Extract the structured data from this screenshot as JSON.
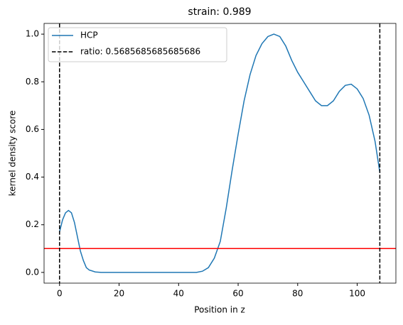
{
  "chart_data": {
    "type": "line",
    "title": "strain: 0.989",
    "xlabel": "Position in z",
    "ylabel": "kernel density score",
    "xlim": [
      -5.2,
      113
    ],
    "ylim": [
      -0.045,
      1.045
    ],
    "xticks": [
      0,
      20,
      40,
      60,
      80,
      100
    ],
    "yticks": [
      {
        "value": 0,
        "label": "0.0"
      },
      0.2,
      0.4,
      0.6,
      0.8,
      {
        "value": 1,
        "label": "1.0"
      }
    ],
    "series": [
      {
        "name": "HCP",
        "color": "#1f77b4",
        "x": [
          0,
          1,
          2,
          3,
          4,
          5,
          6,
          7,
          8,
          9,
          10,
          12,
          14,
          20,
          30,
          40,
          46,
          48,
          50,
          52,
          54,
          56,
          58,
          60,
          62,
          64,
          66,
          68,
          70,
          72,
          74,
          76,
          78,
          80,
          82,
          84,
          86,
          88,
          90,
          92,
          94,
          96,
          98,
          100,
          102,
          104,
          106,
          107.6
        ],
        "values": [
          0.17,
          0.22,
          0.25,
          0.26,
          0.25,
          0.21,
          0.15,
          0.09,
          0.05,
          0.02,
          0.01,
          0.002,
          0,
          0,
          0,
          0,
          0,
          0.005,
          0.02,
          0.06,
          0.13,
          0.27,
          0.43,
          0.58,
          0.72,
          0.83,
          0.91,
          0.96,
          0.99,
          1.0,
          0.99,
          0.95,
          0.89,
          0.84,
          0.8,
          0.76,
          0.72,
          0.7,
          0.7,
          0.72,
          0.76,
          0.785,
          0.79,
          0.77,
          0.73,
          0.66,
          0.55,
          0.42
        ]
      }
    ],
    "vlines": {
      "name": "ratio: 0.5685685685685686",
      "color": "#000000",
      "values": [
        0,
        107.6
      ]
    },
    "hline": {
      "value": 0.1,
      "color": "#ff0000"
    },
    "legend": "upper left"
  }
}
